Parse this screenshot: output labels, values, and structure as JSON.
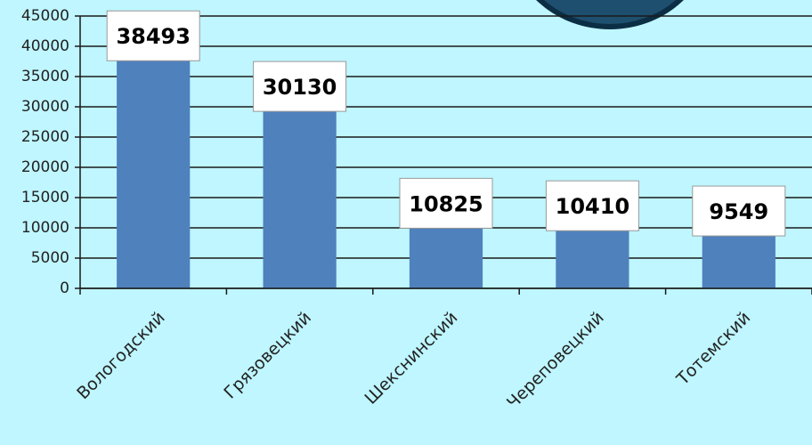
{
  "chart_data": {
    "type": "bar",
    "categories": [
      "Вологодский",
      "Грязовецкий",
      "Шекснинский",
      "Череповецкий",
      "Тотемский"
    ],
    "values": [
      38493,
      30130,
      10825,
      10410,
      9549
    ],
    "color": "#4f81bd",
    "ylim": [
      0,
      45000
    ],
    "yticks": [
      0,
      5000,
      10000,
      15000,
      20000,
      25000,
      30000,
      35000,
      40000,
      45000
    ],
    "grid": true
  }
}
